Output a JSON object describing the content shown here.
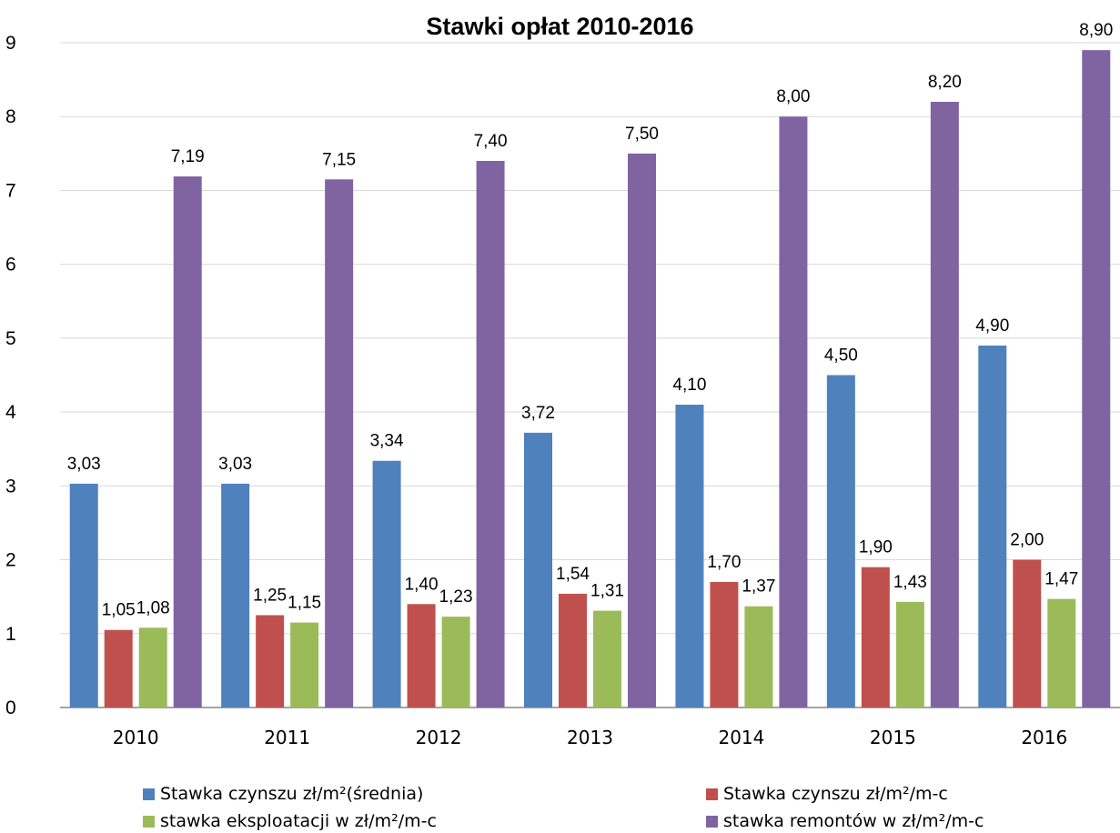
{
  "chart_data": {
    "type": "bar",
    "title": "Stawki opłat 2010-2016",
    "categories": [
      "2010",
      "2011",
      "2012",
      "2013",
      "2014",
      "2015",
      "2016"
    ],
    "ylim": [
      0,
      9
    ],
    "yticks": [
      "0",
      "1",
      "2",
      "3",
      "4",
      "5",
      "6",
      "7",
      "8",
      "9"
    ],
    "grid": true,
    "legend_position": "bottom",
    "series": [
      {
        "name": "Stawka czynszu zł/m²(średnia)",
        "color": "#4F81BD",
        "values": [
          3.03,
          3.03,
          3.34,
          3.72,
          4.1,
          4.5,
          4.9
        ],
        "labels": [
          "3,03",
          "3,03",
          "3,34",
          "3,72",
          "4,10",
          "4,50",
          "4,90"
        ]
      },
      {
        "name": "Stawka czynszu zł/m²/m-c",
        "color": "#C0504D",
        "values": [
          1.05,
          1.25,
          1.4,
          1.54,
          1.7,
          1.9,
          2.0
        ],
        "labels": [
          "1,05",
          "1,25",
          "1,40",
          "1,54",
          "1,70",
          "1,90",
          "2,00"
        ]
      },
      {
        "name": "stawka eksploatacji w zł/m²/m-c",
        "color": "#9BBB59",
        "values": [
          1.08,
          1.15,
          1.23,
          1.31,
          1.37,
          1.43,
          1.47
        ],
        "labels": [
          "1,08",
          "1,15",
          "1,23",
          "1,31",
          "1,37",
          "1,43",
          "1,47"
        ]
      },
      {
        "name": "stawka remontów w zł/m²/m-c",
        "color": "#8064A2",
        "values": [
          7.19,
          7.15,
          7.4,
          7.5,
          8.0,
          8.2,
          8.9
        ],
        "labels": [
          "7,19",
          "7,15",
          "7,40",
          "7,50",
          "8,00",
          "8,20",
          "8,90"
        ]
      }
    ]
  }
}
